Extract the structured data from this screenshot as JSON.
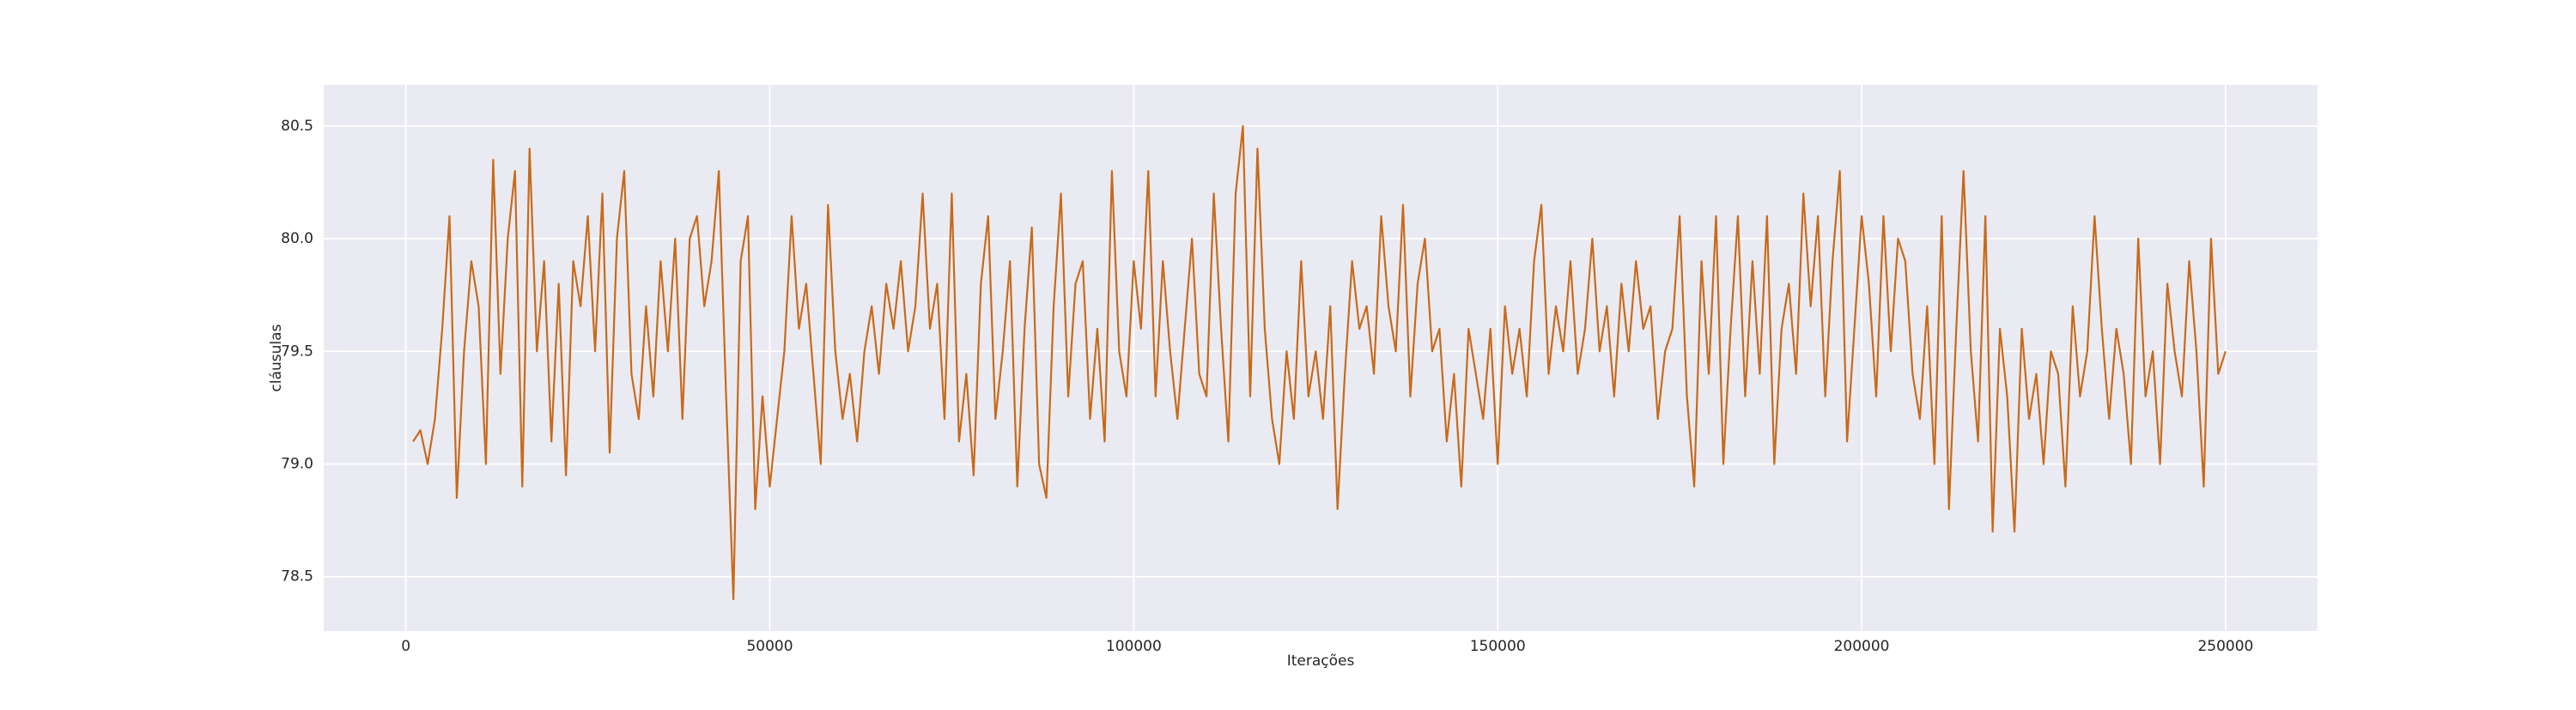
{
  "chart_data": {
    "type": "line",
    "xlabel": "Iterações",
    "ylabel": "cláusulas",
    "xlim": [
      -11282,
      262634
    ],
    "ylim": [
      78.259,
      80.682
    ],
    "xticks": [
      0,
      50000,
      100000,
      150000,
      200000,
      250000
    ],
    "yticks": [
      78.5,
      {
        "value": 79,
        "label": "79.0"
      },
      79.5,
      {
        "value": 80,
        "label": "80.0"
      },
      80.5
    ],
    "grid": true,
    "series": [
      {
        "color": "#c86a1a",
        "x": [
          1000,
          2000,
          3000,
          4000,
          5000,
          6000,
          7000,
          8000,
          9000,
          10000,
          11000,
          12000,
          13000,
          14000,
          15000,
          16000,
          17000,
          18000,
          19000,
          20000,
          21000,
          22000,
          23000,
          24000,
          25000,
          26000,
          27000,
          28000,
          29000,
          30000,
          31000,
          32000,
          33000,
          34000,
          35000,
          36000,
          37000,
          38000,
          39000,
          40000,
          41000,
          42000,
          43000,
          44000,
          45000,
          46000,
          47000,
          48000,
          49000,
          50000,
          51000,
          52000,
          53000,
          54000,
          55000,
          56000,
          57000,
          58000,
          59000,
          60000,
          61000,
          62000,
          63000,
          64000,
          65000,
          66000,
          67000,
          68000,
          69000,
          70000,
          71000,
          72000,
          73000,
          74000,
          75000,
          76000,
          77000,
          78000,
          79000,
          80000,
          81000,
          82000,
          83000,
          84000,
          85000,
          86000,
          87000,
          88000,
          89000,
          90000,
          91000,
          92000,
          93000,
          94000,
          95000,
          96000,
          97000,
          98000,
          99000,
          100000,
          101000,
          102000,
          103000,
          104000,
          105000,
          106000,
          107000,
          108000,
          109000,
          110000,
          111000,
          112000,
          113000,
          114000,
          115000,
          116000,
          117000,
          118000,
          119000,
          120000,
          121000,
          122000,
          123000,
          124000,
          125000,
          126000,
          127000,
          128000,
          129000,
          130000,
          131000,
          132000,
          133000,
          134000,
          135000,
          136000,
          137000,
          138000,
          139000,
          140000,
          141000,
          142000,
          143000,
          144000,
          145000,
          146000,
          147000,
          148000,
          149000,
          150000,
          151000,
          152000,
          153000,
          154000,
          155000,
          156000,
          157000,
          158000,
          159000,
          160000,
          161000,
          162000,
          163000,
          164000,
          165000,
          166000,
          167000,
          168000,
          169000,
          170000,
          171000,
          172000,
          173000,
          174000,
          175000,
          176000,
          177000,
          178000,
          179000,
          180000,
          181000,
          182000,
          183000,
          184000,
          185000,
          186000,
          187000,
          188000,
          189000,
          190000,
          191000,
          192000,
          193000,
          194000,
          195000,
          196000,
          197000,
          198000,
          199000,
          200000,
          201000,
          202000,
          203000,
          204000,
          205000,
          206000,
          207000,
          208000,
          209000,
          210000,
          211000,
          212000,
          213000,
          214000,
          215000,
          216000,
          217000,
          218000,
          219000,
          220000,
          221000,
          222000,
          223000,
          224000,
          225000,
          226000,
          227000,
          228000,
          229000,
          230000,
          231000,
          232000,
          233000,
          234000,
          235000,
          236000,
          237000,
          238000,
          239000,
          240000,
          241000,
          242000,
          243000,
          244000,
          245000,
          246000,
          247000,
          248000,
          249000,
          250000
        ],
        "values": [
          79.1,
          79.15,
          79.0,
          79.2,
          79.6,
          80.1,
          78.85,
          79.5,
          79.9,
          79.7,
          79.0,
          80.35,
          79.4,
          80.0,
          80.3,
          78.9,
          80.4,
          79.5,
          79.9,
          79.1,
          79.8,
          78.95,
          79.9,
          79.7,
          80.1,
          79.5,
          80.2,
          79.05,
          80.0,
          80.3,
          79.4,
          79.2,
          79.7,
          79.3,
          79.9,
          79.5,
          80.0,
          79.2,
          80.0,
          80.1,
          79.7,
          79.9,
          80.3,
          79.3,
          78.4,
          79.9,
          80.1,
          78.8,
          79.3,
          78.9,
          79.2,
          79.5,
          80.1,
          79.6,
          79.8,
          79.4,
          79.0,
          80.15,
          79.5,
          79.2,
          79.4,
          79.1,
          79.5,
          79.7,
          79.4,
          79.8,
          79.6,
          79.9,
          79.5,
          79.7,
          80.2,
          79.6,
          79.8,
          79.2,
          80.2,
          79.1,
          79.4,
          78.95,
          79.8,
          80.1,
          79.2,
          79.5,
          79.9,
          78.9,
          79.6,
          80.05,
          79.0,
          78.85,
          79.7,
          80.2,
          79.3,
          79.8,
          79.9,
          79.2,
          79.6,
          79.1,
          80.3,
          79.5,
          79.3,
          79.9,
          79.6,
          80.3,
          79.3,
          79.9,
          79.5,
          79.2,
          79.6,
          80.0,
          79.4,
          79.3,
          80.2,
          79.6,
          79.1,
          80.2,
          80.5,
          79.3,
          80.4,
          79.6,
          79.2,
          79.0,
          79.5,
          79.2,
          79.9,
          79.3,
          79.5,
          79.2,
          79.7,
          78.8,
          79.4,
          79.9,
          79.6,
          79.7,
          79.4,
          80.1,
          79.7,
          79.5,
          80.15,
          79.3,
          79.8,
          80.0,
          79.5,
          79.6,
          79.1,
          79.4,
          78.9,
          79.6,
          79.4,
          79.2,
          79.6,
          79.0,
          79.7,
          79.4,
          79.6,
          79.3,
          79.9,
          80.15,
          79.4,
          79.7,
          79.5,
          79.9,
          79.4,
          79.6,
          80.0,
          79.5,
          79.7,
          79.3,
          79.8,
          79.5,
          79.9,
          79.6,
          79.7,
          79.2,
          79.5,
          79.6,
          80.1,
          79.3,
          78.9,
          79.9,
          79.4,
          80.1,
          79.0,
          79.6,
          80.1,
          79.3,
          79.9,
          79.4,
          80.1,
          79.0,
          79.6,
          79.8,
          79.4,
          80.2,
          79.7,
          80.1,
          79.3,
          79.9,
          80.3,
          79.1,
          79.6,
          80.1,
          79.8,
          79.3,
          80.1,
          79.5,
          80.0,
          79.9,
          79.4,
          79.2,
          79.7,
          79.0,
          80.1,
          78.8,
          79.6,
          80.3,
          79.5,
          79.1,
          80.1,
          78.7,
          79.6,
          79.3,
          78.7,
          79.6,
          79.2,
          79.4,
          79.0,
          79.5,
          79.4,
          78.9,
          79.7,
          79.3,
          79.5,
          80.1,
          79.6,
          79.2,
          79.6,
          79.4,
          79.0,
          80.0,
          79.3,
          79.5,
          79.0,
          79.8,
          79.5,
          79.3,
          79.9,
          79.5,
          78.9,
          80.0,
          79.4,
          79.5
        ]
      }
    ]
  }
}
